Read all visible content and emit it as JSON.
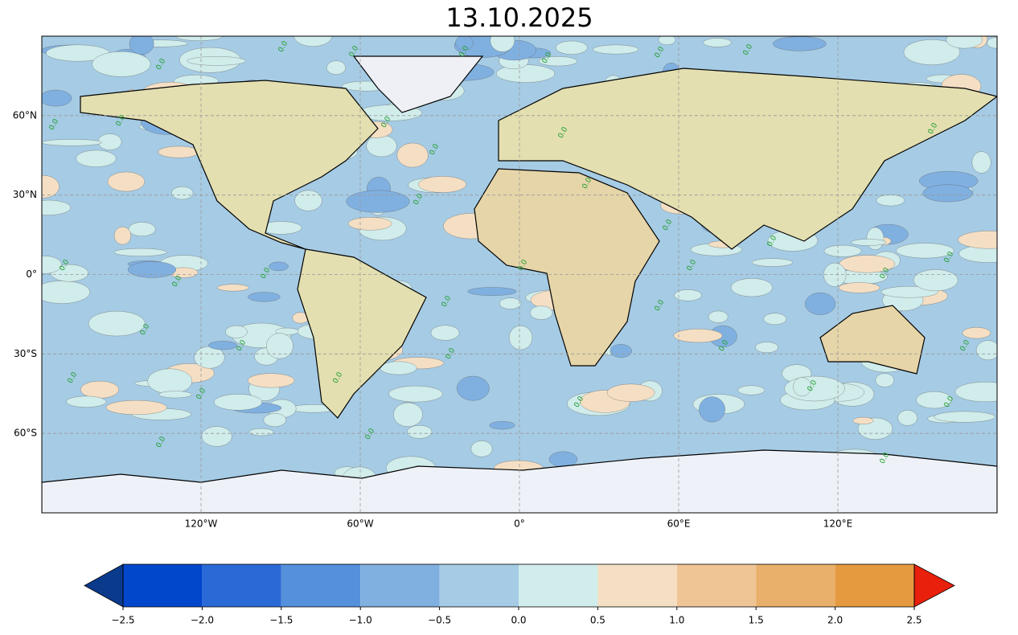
{
  "title": "13.10.2025",
  "map": {
    "lonlim": [
      -180,
      180
    ],
    "latlim": [
      -90,
      90
    ],
    "lon_ticks": [
      {
        "value": -120,
        "label": "120°W"
      },
      {
        "value": -60,
        "label": "60°W"
      },
      {
        "value": 0,
        "label": "0°"
      },
      {
        "value": 60,
        "label": "60°E"
      },
      {
        "value": 120,
        "label": "120°E"
      }
    ],
    "lat_ticks": [
      {
        "value": 60,
        "label": "60°N"
      },
      {
        "value": 30,
        "label": "30°N"
      },
      {
        "value": 0,
        "label": "0°"
      },
      {
        "value": -30,
        "label": "30°S"
      },
      {
        "value": -60,
        "label": "60°S"
      }
    ],
    "grid": true,
    "contour_labels": [
      "0.0",
      "0.0",
      "0.0",
      "0.0",
      "0.0",
      "0.0",
      "0.0",
      "0.0",
      "0.0",
      "0.0",
      "0.0",
      "0.0",
      "0.0",
      "0.0",
      "0.0",
      "0.0",
      "0.0",
      "0.0",
      "0.0",
      "0.0",
      "0.0",
      "0.0",
      "0.0",
      "0.0",
      "0.0",
      "0.0",
      "0.0",
      "0.0",
      "0.0",
      "0.0",
      "0.0",
      "0.0",
      "0.0",
      "0.0",
      "0.0",
      "0.0",
      "0.0",
      "0.0",
      "0.0",
      "0.0"
    ]
  },
  "colorbar": {
    "ticks": [
      {
        "value": -2.5,
        "label": "−2.5"
      },
      {
        "value": -2.0,
        "label": "−2.0"
      },
      {
        "value": -1.5,
        "label": "−1.5"
      },
      {
        "value": -1.0,
        "label": "−1.0"
      },
      {
        "value": -0.5,
        "label": "−0.5"
      },
      {
        "value": 0,
        "label": "0.0"
      },
      0.5,
      {
        "value": 1.0,
        "label": "1.0"
      },
      1.5,
      {
        "value": 2.0,
        "label": "2.0"
      },
      2.5
    ],
    "colors": [
      "#0047cc",
      "#2a6ad6",
      "#5590dc",
      "#80b0e0",
      "#a6cbe4",
      "#d0eceb",
      "#f5dfc4",
      "#f0c595",
      "#e8b06a",
      "#e59a40"
    ],
    "extend_min_color": "#0a3a8c",
    "extend_max_color": "#e8200c"
  }
}
